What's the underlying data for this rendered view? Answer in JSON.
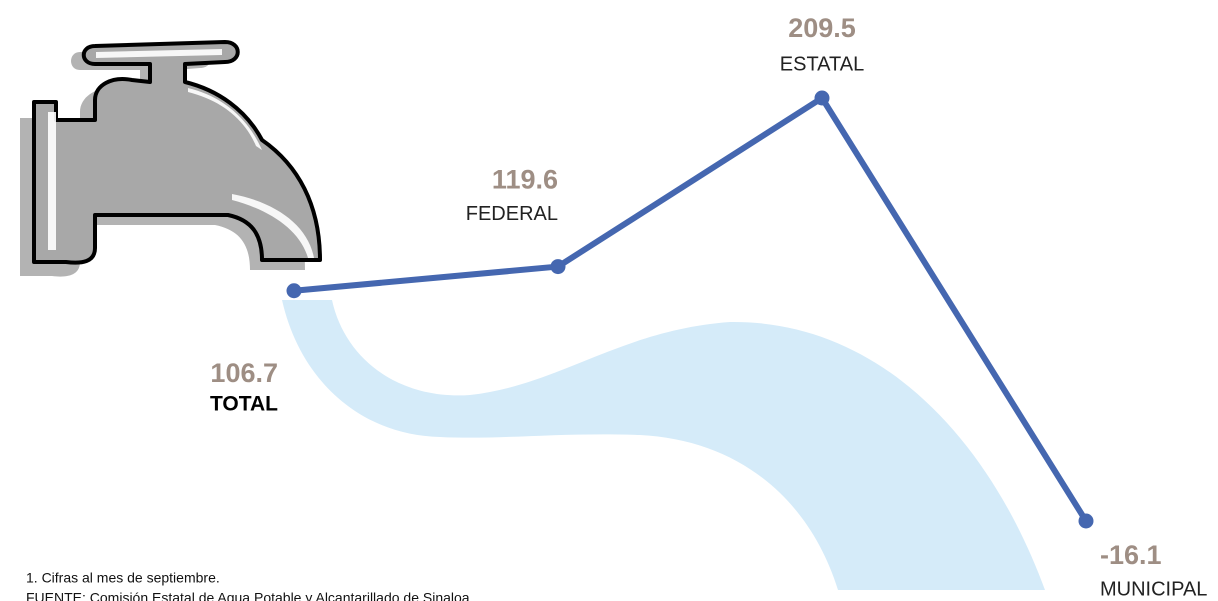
{
  "chart_data": {
    "type": "line",
    "categories": [
      "TOTAL",
      "FEDERAL",
      "ESTATAL",
      "MUNICIPAL"
    ],
    "series": [
      {
        "color": "#4567b0",
        "values": [
          106.7,
          119.6,
          209.5,
          -16.1
        ]
      }
    ],
    "notes": [
      "1. Cifras al mes de septiembre.",
      "FUENTE: Comisión Estatal de Agua Potable y Alcantarillado de Sinaloa."
    ]
  }
}
